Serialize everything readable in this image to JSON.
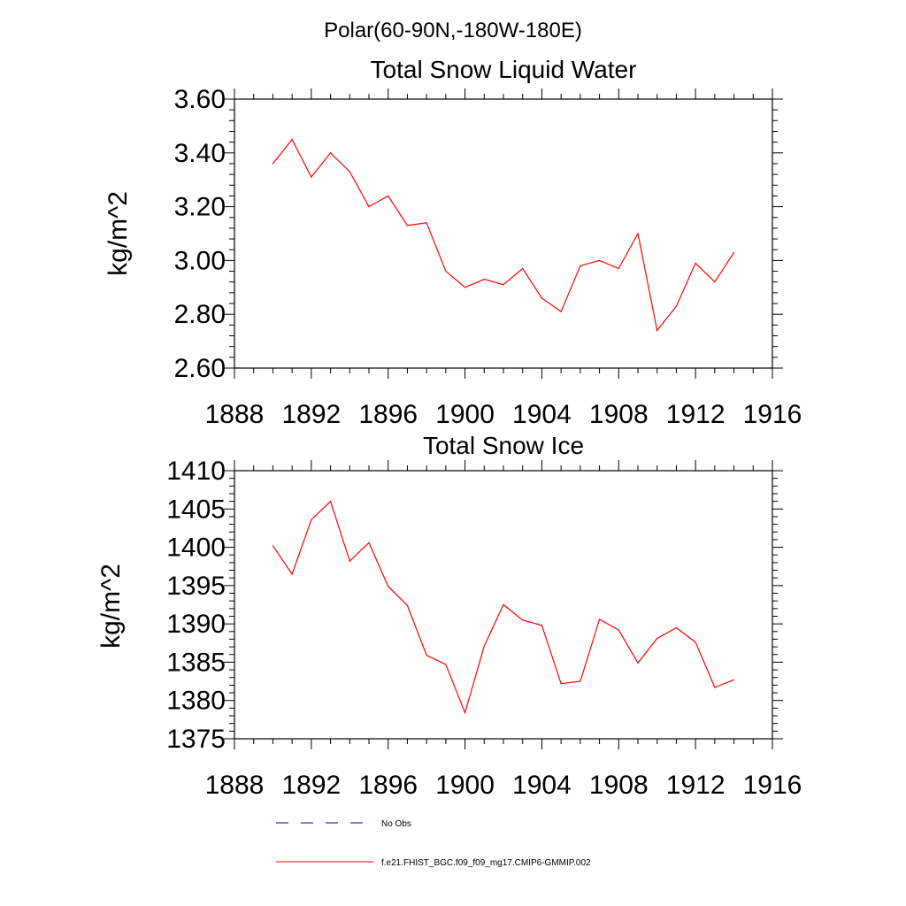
{
  "suptitle": "Polar(60-90N,-180W-180E)",
  "legend": {
    "placement": "bottom",
    "entries": [
      {
        "label": "No Obs",
        "color": "#000080",
        "dash": "dashed"
      },
      {
        "label": "f.e21.FHIST_BGC.f09_f09_mg17.CMIP6-GMMIP.002",
        "color": "#ff0000",
        "dash": "solid"
      }
    ]
  },
  "chart_data": [
    {
      "type": "line",
      "title": "Total Snow Liquid Water",
      "xlabel": "",
      "ylabel": "kg/m^2",
      "xlim": [
        1888,
        1916
      ],
      "ylim": [
        2.6,
        3.6
      ],
      "xticks": [
        1888,
        1892,
        1896,
        1900,
        1904,
        1908,
        1912,
        1916
      ],
      "xtick_labels": [
        "1888",
        "1892",
        "1896",
        "1900",
        "1904",
        "1908",
        "1912",
        "1916"
      ],
      "yticks": [
        2.6,
        2.8,
        3.0,
        3.2,
        3.4,
        3.6
      ],
      "ytick_labels": [
        "2.60",
        "2.80",
        "3.00",
        "3.20",
        "3.40",
        "3.60"
      ],
      "grid": false,
      "series": [
        {
          "name": "f.e21.FHIST_BGC.f09_f09_mg17.CMIP6-GMMIP.002",
          "color": "#ff0000",
          "x": [
            1890,
            1891,
            1892,
            1893,
            1894,
            1895,
            1896,
            1897,
            1898,
            1899,
            1900,
            1901,
            1902,
            1903,
            1904,
            1905,
            1906,
            1907,
            1908,
            1909,
            1910,
            1911,
            1912,
            1913,
            1914
          ],
          "y": [
            3.36,
            3.45,
            3.31,
            3.4,
            3.33,
            3.2,
            3.24,
            3.13,
            3.14,
            2.96,
            2.9,
            2.93,
            2.91,
            2.97,
            2.86,
            2.81,
            2.98,
            3.0,
            2.97,
            3.1,
            2.74,
            2.83,
            2.99,
            2.92,
            3.03
          ]
        }
      ]
    },
    {
      "type": "line",
      "title": "Total Snow Ice",
      "xlabel": "",
      "ylabel": "kg/m^2",
      "xlim": [
        1888,
        1916
      ],
      "ylim": [
        1375,
        1410
      ],
      "xticks": [
        1888,
        1892,
        1896,
        1900,
        1904,
        1908,
        1912,
        1916
      ],
      "xtick_labels": [
        "1888",
        "1892",
        "1896",
        "1900",
        "1904",
        "1908",
        "1912",
        "1916"
      ],
      "yticks": [
        1375,
        1380,
        1385,
        1390,
        1395,
        1400,
        1405,
        1410
      ],
      "ytick_labels": [
        "1375",
        "1380",
        "1385",
        "1390",
        "1395",
        "1400",
        "1405",
        "1410"
      ],
      "grid": false,
      "series": [
        {
          "name": "f.e21.FHIST_BGC.f09_f09_mg17.CMIP6-GMMIP.002",
          "color": "#ff0000",
          "x": [
            1890,
            1891,
            1892,
            1893,
            1894,
            1895,
            1896,
            1897,
            1898,
            1899,
            1900,
            1901,
            1902,
            1903,
            1904,
            1905,
            1906,
            1907,
            1908,
            1909,
            1910,
            1911,
            1912,
            1913,
            1914
          ],
          "y": [
            1400.2,
            1396.5,
            1403.6,
            1406.0,
            1398.2,
            1400.6,
            1394.9,
            1392.4,
            1385.9,
            1384.7,
            1378.4,
            1387.1,
            1392.5,
            1390.5,
            1389.8,
            1382.2,
            1382.5,
            1390.6,
            1389.2,
            1384.9,
            1388.1,
            1389.5,
            1387.6,
            1381.7,
            1382.7
          ]
        }
      ]
    }
  ]
}
